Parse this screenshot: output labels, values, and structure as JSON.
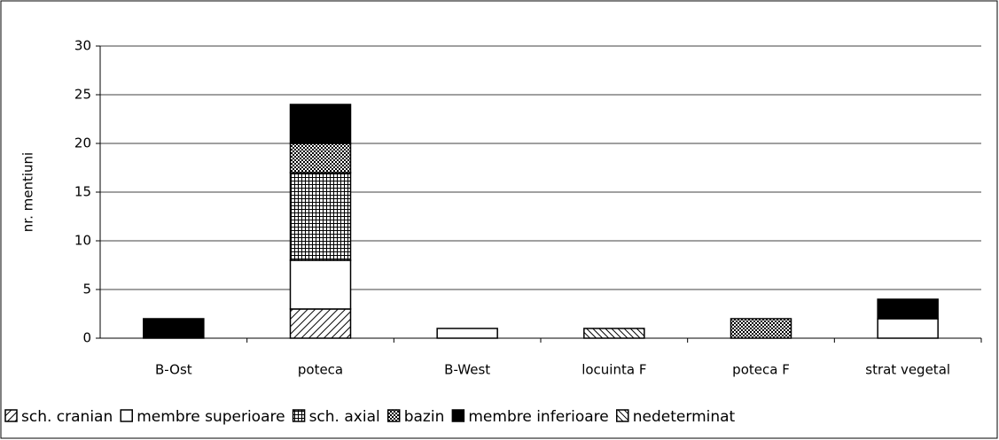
{
  "chart_data": {
    "type": "stacked_bar",
    "y_label": "nr. mentiuni",
    "categories": [
      "B-Ost",
      "poteca",
      "B-West",
      "locuinta F",
      "poteca F",
      "strat vegetal"
    ],
    "series": [
      {
        "name": "sch. cranian",
        "color": "#000000",
        "pattern": "diagonal",
        "values": [
          0,
          3,
          0,
          0,
          0,
          0
        ]
      },
      {
        "name": "membre superioare",
        "color": "#ffffff",
        "pattern": "solid",
        "values": [
          0,
          5,
          1,
          0,
          0,
          2
        ]
      },
      {
        "name": "sch. axial",
        "color": "#000000",
        "pattern": "grid",
        "values": [
          0,
          9,
          0,
          0,
          0,
          0
        ]
      },
      {
        "name": "bazin",
        "color": "#000000",
        "pattern": "checker",
        "values": [
          0,
          3,
          0,
          0,
          2,
          0
        ]
      },
      {
        "name": "membre inferioare",
        "color": "#000000",
        "pattern": "solid",
        "values": [
          2,
          4,
          0,
          0,
          0,
          2
        ]
      },
      {
        "name": "nedeterminat",
        "color": "#000000",
        "pattern": "backdiagonal",
        "values": [
          0,
          0,
          0,
          1,
          0,
          0
        ]
      }
    ],
    "ylim": [
      0,
      30
    ],
    "yticks": [
      0,
      5,
      10,
      15,
      20,
      25,
      30
    ],
    "grid": true,
    "legend": "bottom"
  }
}
